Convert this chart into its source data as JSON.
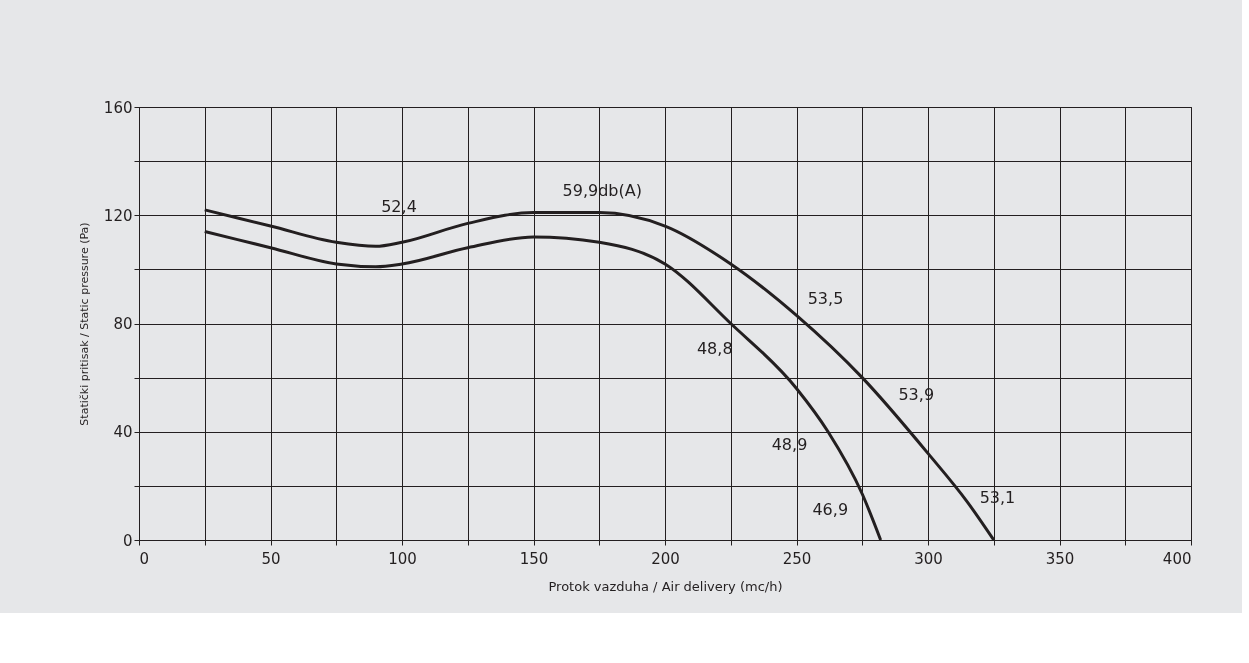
{
  "chart_data": {
    "type": "line",
    "xlabel": "Protok vazduha  / Air delivery (mc/h)",
    "ylabel": "Statički pritisak / Static pressure (Pa)",
    "series": [
      {
        "color": "#231f20",
        "x": [
          25,
          50,
          75,
          90,
          100,
          125,
          150,
          175,
          200,
          225,
          250,
          275,
          300,
          315,
          325
        ],
        "values": [
          122,
          116,
          110,
          108.5,
          110,
          117,
          121,
          121,
          116,
          102,
          83,
          60,
          32,
          14,
          0
        ]
      },
      {
        "color": "#231f20",
        "x": [
          25,
          50,
          75,
          90,
          100,
          125,
          150,
          175,
          200,
          225,
          250,
          262,
          275,
          282
        ],
        "values": [
          114,
          108,
          102,
          101,
          102,
          108,
          112,
          110,
          102,
          80,
          56,
          40,
          17,
          0
        ]
      }
    ],
    "xlim": [
      0,
      400
    ],
    "ylim": [
      0,
      160
    ],
    "xticks": [
      0,
      {
        "value": 25,
        "label": null
      },
      50,
      {
        "value": 75,
        "label": null
      },
      100,
      {
        "value": 125,
        "label": null
      },
      150,
      {
        "value": 175,
        "label": null
      },
      200,
      {
        "value": 225,
        "label": null
      },
      250,
      {
        "value": 275,
        "label": null
      },
      300,
      {
        "value": 325,
        "label": null
      },
      350,
      {
        "value": 375,
        "label": null
      },
      400
    ],
    "yticks": [
      0,
      {
        "value": 20,
        "label": null
      },
      40,
      {
        "value": 60,
        "label": null
      },
      80,
      {
        "value": 100,
        "label": null
      },
      120,
      {
        "value": 140,
        "label": null
      },
      160
    ],
    "grid": true,
    "line_style": "solid",
    "marker": "none",
    "annotations": [
      {
        "text": "52,4",
        "x": 100,
        "y": 110
      },
      {
        "text": "59,9db(A)",
        "x": 175,
        "y": 121
      },
      {
        "text": "53,5",
        "x": 250,
        "y": 83
      },
      {
        "text": "53,9",
        "x": 275,
        "y": 60
      },
      {
        "text": "53,1",
        "x": 315,
        "y": 14
      },
      {
        "text": "48,8",
        "x": 225,
        "y": 80
      },
      {
        "text": "48,9",
        "x": 250,
        "y": 56
      },
      {
        "text": "46,9",
        "x": 275,
        "y": 17
      }
    ]
  }
}
